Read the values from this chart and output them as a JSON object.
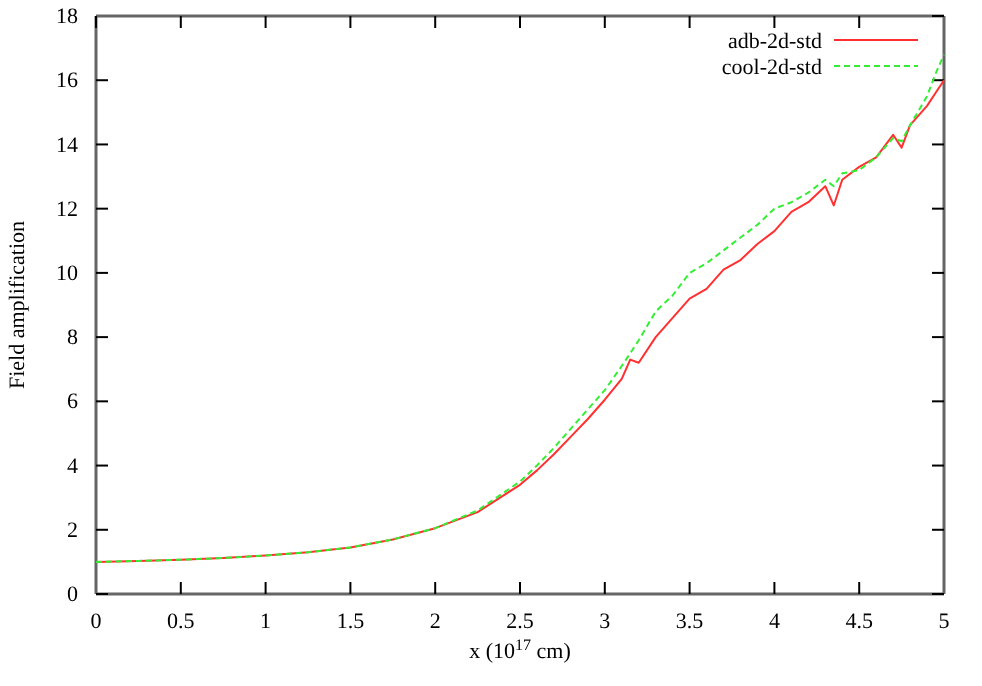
{
  "chart_data": {
    "type": "line",
    "xlabel": "x (10$^{17}$ cm)",
    "ylabel": "Field amplification",
    "x": [
      0,
      0.25,
      0.5,
      0.75,
      1,
      1.25,
      1.5,
      1.75,
      2,
      2.25,
      2.5,
      2.6,
      2.7,
      2.8,
      2.9,
      3.0,
      3.1,
      3.15,
      3.2,
      3.3,
      3.4,
      3.5,
      3.6,
      3.7,
      3.8,
      3.9,
      4.0,
      4.1,
      4.2,
      4.3,
      4.35,
      4.4,
      4.5,
      4.6,
      4.7,
      4.75,
      4.8,
      4.9,
      4.95,
      5
    ],
    "series": [
      {
        "name": "adb-2d-std",
        "color": "#ff3030",
        "line_style": "solid",
        "values": [
          1.0,
          1.03,
          1.07,
          1.12,
          1.2,
          1.3,
          1.45,
          1.7,
          2.05,
          2.55,
          3.4,
          3.85,
          4.35,
          4.9,
          5.45,
          6.05,
          6.7,
          7.3,
          7.2,
          8.0,
          8.6,
          9.2,
          9.5,
          10.1,
          10.4,
          10.9,
          11.3,
          11.9,
          12.2,
          12.7,
          12.1,
          12.9,
          13.3,
          13.6,
          14.3,
          13.9,
          14.6,
          15.2,
          15.6,
          16.0
        ]
      },
      {
        "name": "cool-2d-std",
        "color": "#33ee33",
        "line_style": "dashed",
        "values": [
          1.0,
          1.03,
          1.07,
          1.12,
          1.2,
          1.3,
          1.45,
          1.7,
          2.05,
          2.6,
          3.5,
          4.0,
          4.55,
          5.15,
          5.75,
          6.35,
          7.1,
          7.5,
          7.9,
          8.8,
          9.3,
          10.0,
          10.3,
          10.7,
          11.1,
          11.5,
          12.0,
          12.2,
          12.5,
          12.9,
          12.7,
          13.1,
          13.2,
          13.6,
          14.2,
          14.1,
          14.6,
          15.5,
          16.2,
          16.8
        ]
      }
    ],
    "xlim": [
      0,
      5
    ],
    "xticks": [
      0,
      0.5,
      1,
      1.5,
      2,
      2.5,
      3,
      3.5,
      4,
      4.5,
      5
    ],
    "ylim": [
      0,
      18
    ],
    "yticks": [
      0,
      2,
      4,
      6,
      8,
      10,
      12,
      14,
      16,
      18
    ],
    "grid": false,
    "legend": "top right",
    "marker": "none"
  }
}
